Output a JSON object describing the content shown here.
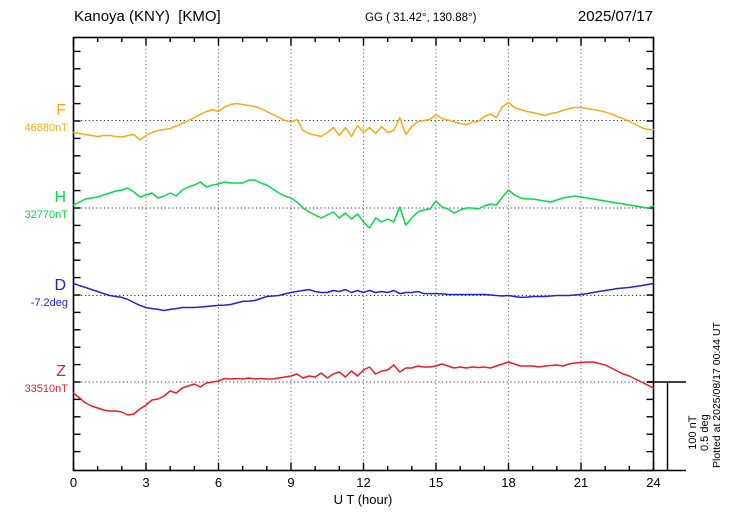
{
  "header": {
    "station": "Kanoya (KNY)  [KMO]",
    "geographic": "GG ( 31.42°, 130.88°)",
    "date": "2025/07/17"
  },
  "xaxis": {
    "label": "U T (hour)"
  },
  "scale_bar": {
    "line1": "100 nT",
    "line2": "0.5 deg"
  },
  "plotted_note": "Plotted at 2025/08/17 00:44 UT",
  "colors": {
    "frame": "#000000",
    "grid_vertical": "#777777",
    "baseline_dotted": "#333333",
    "F": "#FFA817",
    "H": "#00DC46",
    "D": "#2121DE",
    "Z": "#EB1C24"
  },
  "chart_data": {
    "type": "line",
    "title": "Kanoya (KNY) [KMO] magnetogram 2025/07/17",
    "xlabel": "U T (hour)",
    "x_range": [
      0,
      24
    ],
    "x_ticks": [
      0,
      3,
      6,
      9,
      12,
      15,
      18,
      21,
      24
    ],
    "x_minor_tick_hours": 1,
    "x_step_hours": 0.25,
    "grid": "vertical dotted gridlines every 3 h; dotted horizontal baseline for each channel",
    "y_scale_per_division": "100 nT or 0.5 deg",
    "y_minor_tick": "20 nT (0.1 deg)",
    "legend_position": "left margin channel labels",
    "series": [
      {
        "name": "F",
        "units": "nT",
        "baseline": 46880,
        "baseline_label": "46880nT",
        "color_key": "F",
        "offsets": [
          -13.8,
          -14.9,
          -16.1,
          -17.2,
          -18.4,
          -17.2,
          -17.2,
          -18.4,
          -19.0,
          -17.2,
          -16.1,
          -22.4,
          -17.2,
          -13.8,
          -11.5,
          -10.3,
          -9.2,
          -6.3,
          -3.4,
          0,
          3.4,
          6.9,
          10.3,
          12.6,
          10.3,
          15.5,
          18.4,
          19.5,
          18.4,
          17.2,
          16.1,
          13.8,
          10.3,
          6.9,
          3.4,
          0,
          -1.7,
          1.1,
          -11.5,
          -14.9,
          -16.7,
          -18.4,
          -13.8,
          -8.0,
          -17.2,
          -8.0,
          -18.4,
          -5.7,
          -13.8,
          -8.0,
          -14.9,
          -6.9,
          -13.8,
          -11.5,
          3.4,
          -16.1,
          -6.9,
          -1.1,
          0,
          1.1,
          6.9,
          2.3,
          0.6,
          -1.7,
          -3.4,
          -4.6,
          -1.7,
          -1.1,
          4.6,
          7.5,
          3.4,
          16.1,
          20.7,
          14.9,
          12.6,
          10.3,
          9.2,
          7.5,
          5.7,
          8.0,
          9.2,
          11.5,
          13.8,
          14.9,
          14.9,
          13.8,
          12.6,
          11.5,
          9.8,
          7.5,
          4.6,
          2.3,
          -1.1,
          -4.6,
          -8.0,
          -10.3,
          -10.3
        ]
      },
      {
        "name": "H",
        "units": "nT",
        "baseline": 32770,
        "baseline_label": "32770nT",
        "color_key": "H",
        "offsets": [
          3.4,
          6.9,
          10.3,
          11.5,
          12.6,
          14.9,
          17.2,
          19.5,
          20.7,
          23.0,
          18.4,
          12.6,
          14.9,
          17.2,
          11.5,
          13.8,
          17.2,
          13.8,
          20.7,
          24.1,
          26.4,
          29.9,
          24.1,
          26.4,
          27.6,
          29.9,
          28.7,
          28.7,
          28.7,
          32.2,
          32.2,
          28.7,
          26.4,
          21.8,
          17.2,
          13.8,
          11.5,
          6.9,
          0,
          -4.6,
          -8.0,
          -11.5,
          -8.0,
          -4.6,
          -11.5,
          -5.7,
          -12.6,
          -6.9,
          -16.1,
          -23.0,
          -11.5,
          -16.1,
          -12.6,
          -16.1,
          1.1,
          -19.5,
          -11.5,
          -4.6,
          -2.3,
          -1.1,
          8.0,
          1.1,
          -1.1,
          -5.7,
          -2.3,
          0,
          0,
          -1.1,
          2.3,
          4.6,
          3.4,
          12.6,
          20.7,
          14.9,
          11.5,
          10.3,
          10.3,
          9.2,
          8.0,
          6.9,
          9.2,
          11.5,
          12.6,
          13.8,
          12.6,
          11.5,
          10.3,
          9.2,
          8.0,
          6.9,
          5.7,
          4.6,
          3.4,
          2.3,
          1.1,
          0,
          2.3
        ]
      },
      {
        "name": "D",
        "units": "deg",
        "baseline": -7.2,
        "baseline_label": "-7.2deg",
        "color_key": "D",
        "offsets": [
          0.069,
          0.057,
          0.046,
          0.034,
          0.023,
          0.011,
          0,
          -0.006,
          -0.011,
          -0.023,
          -0.04,
          -0.057,
          -0.069,
          -0.075,
          -0.08,
          -0.086,
          -0.08,
          -0.075,
          -0.069,
          -0.069,
          -0.069,
          -0.066,
          -0.063,
          -0.06,
          -0.057,
          -0.055,
          -0.052,
          -0.043,
          -0.034,
          -0.032,
          -0.029,
          -0.017,
          -0.006,
          -0.003,
          0,
          0.009,
          0.017,
          0.023,
          0.029,
          0.034,
          0.023,
          0.017,
          0.017,
          0.029,
          0.023,
          0.034,
          0.017,
          0.029,
          0.017,
          0.029,
          0.017,
          0.023,
          0.017,
          0.029,
          0.011,
          0.017,
          0.017,
          0.023,
          0.011,
          0.011,
          0.011,
          0.009,
          0.006,
          0.006,
          0.006,
          0.006,
          0.006,
          0.006,
          0.006,
          0.003,
          0,
          -0.003,
          0,
          -0.006,
          -0.011,
          -0.009,
          -0.006,
          -0.006,
          -0.006,
          -0.003,
          0,
          0,
          0,
          0.003,
          0.006,
          0.011,
          0.017,
          0.023,
          0.029,
          0.034,
          0.04,
          0.043,
          0.046,
          0.052,
          0.057,
          0.063,
          0.069
        ]
      },
      {
        "name": "Z",
        "units": "nT",
        "baseline": 33510,
        "baseline_label": "33510nT",
        "color_key": "Z",
        "offsets": [
          -12.6,
          -18.4,
          -24.1,
          -27.6,
          -29.9,
          -32.2,
          -33.3,
          -33.3,
          -34.5,
          -37.9,
          -36.8,
          -31.0,
          -26.4,
          -20.7,
          -19.5,
          -16.1,
          -10.3,
          -12.6,
          -6.9,
          -4.6,
          -2.3,
          -5.7,
          -1.1,
          0,
          1.1,
          4.0,
          3.4,
          4.0,
          3.4,
          4.6,
          3.4,
          4.0,
          3.4,
          3.4,
          4.6,
          5.7,
          6.9,
          9.2,
          4.6,
          6.9,
          5.7,
          10.3,
          4.6,
          9.2,
          11.5,
          5.7,
          12.6,
          6.9,
          13.8,
          17.2,
          9.2,
          12.6,
          13.8,
          19.5,
          11.5,
          16.1,
          16.1,
          18.4,
          17.2,
          17.2,
          18.4,
          20.7,
          18.4,
          16.1,
          17.2,
          16.1,
          17.2,
          16.7,
          17.2,
          16.1,
          18.4,
          20.7,
          23.0,
          20.7,
          18.4,
          18.4,
          18.4,
          17.2,
          18.4,
          19.0,
          19.5,
          18.4,
          20.7,
          21.8,
          22.4,
          23.0,
          23.0,
          21.3,
          19.5,
          16.1,
          12.6,
          9.2,
          6.9,
          3.4,
          0,
          -3.4,
          -6.9
        ]
      }
    ]
  }
}
